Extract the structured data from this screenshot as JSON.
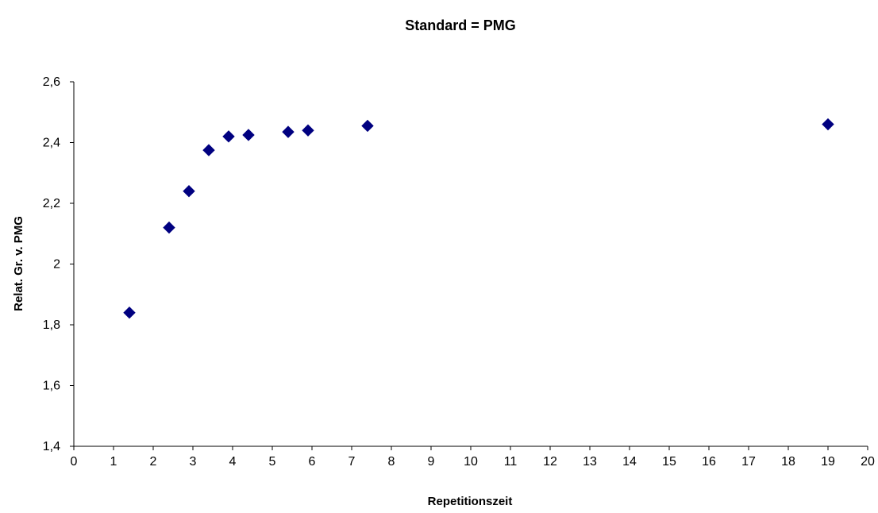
{
  "chart_data": {
    "type": "scatter",
    "title": "Standard = PMG",
    "xlabel": "Repetitionszeit",
    "ylabel": "Relat. Gr. v. PMG",
    "xlim": [
      0,
      20
    ],
    "ylim": [
      1.4,
      2.6
    ],
    "x_ticks": [
      "0",
      "1",
      "2",
      "3",
      "4",
      "5",
      "6",
      "7",
      "8",
      "9",
      "10",
      "11",
      "12",
      "13",
      "14",
      "15",
      "16",
      "17",
      "18",
      "19",
      "20"
    ],
    "y_ticks": [
      "1,4",
      "1,6",
      "1,8",
      "2",
      "2,2",
      "2,4",
      "2,6"
    ],
    "grid": false,
    "legend": "none",
    "marker": "diamond",
    "marker_color": "#000080",
    "series": [
      {
        "x": [
          1.4,
          2.4,
          2.9,
          3.4,
          3.9,
          4.4,
          5.4,
          5.9,
          7.4,
          19
        ],
        "y": [
          1.84,
          2.12,
          2.24,
          2.375,
          2.42,
          2.425,
          2.435,
          2.44,
          2.455,
          2.46
        ]
      }
    ]
  }
}
